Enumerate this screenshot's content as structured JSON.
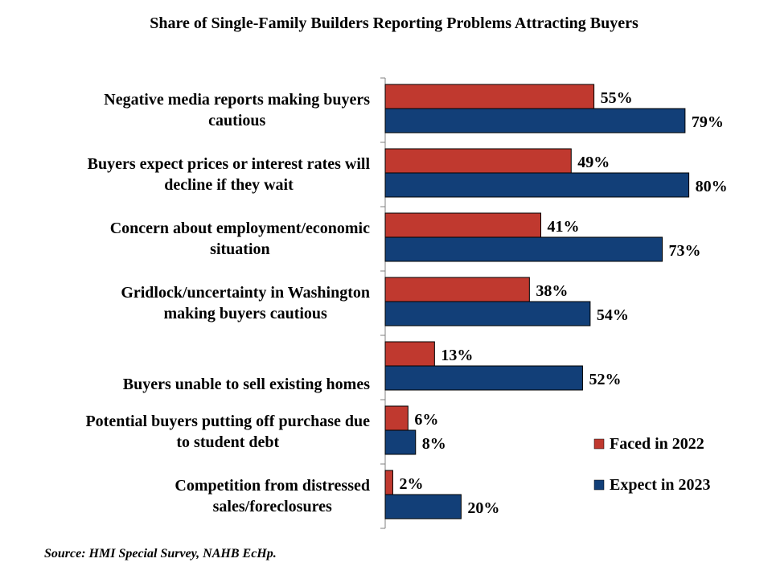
{
  "chart_data": {
    "type": "bar",
    "orientation": "horizontal",
    "title": "Share of Single-Family Builders Reporting Problems Attracting Buyers",
    "categories": [
      [
        "Negative media reports making buyers",
        "cautious"
      ],
      [
        "Buyers expect prices or interest rates will",
        "decline if they wait"
      ],
      [
        "Concern about employment/economic",
        "situation"
      ],
      [
        "Gridlock/uncertainty in Washington",
        "making buyers cautious"
      ],
      [
        "Buyers unable to sell existing homes"
      ],
      [
        "Potential buyers putting off purchase due",
        "to student debt"
      ],
      [
        "Competition from distressed",
        "sales/foreclosures"
      ]
    ],
    "series": [
      {
        "name": "Faced in 2022",
        "color": "#c0392f",
        "values": [
          55,
          49,
          41,
          38,
          13,
          6,
          2
        ]
      },
      {
        "name": "Expect in 2023",
        "color": "#123f78",
        "values": [
          79,
          80,
          73,
          54,
          52,
          8,
          20
        ]
      }
    ],
    "value_suffix": "%",
    "xlim": [
      0,
      100
    ],
    "grid": false,
    "legend_position": "right"
  },
  "source": "Source: HMI Special Survey, NAHB EcHp."
}
